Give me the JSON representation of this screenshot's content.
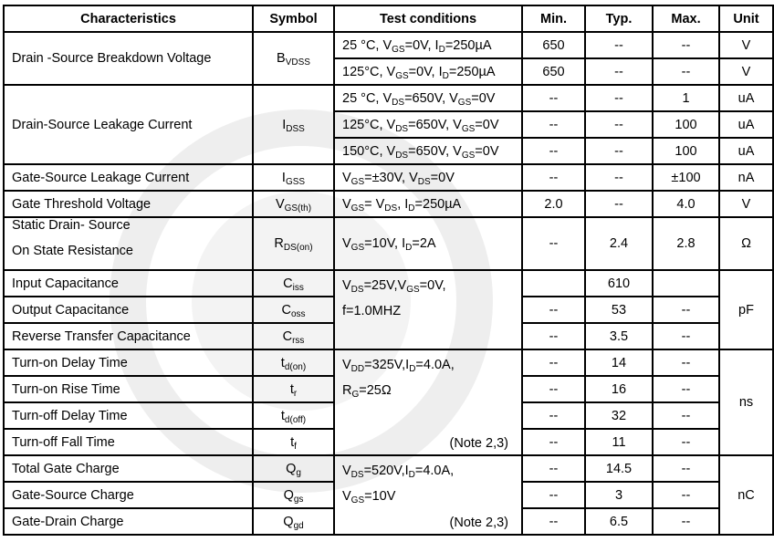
{
  "header": [
    "Characteristics",
    "Symbol",
    "Test conditions",
    "Min.",
    "Typ.",
    "Max.",
    "Unit"
  ],
  "groups": [
    {
      "type": "multi",
      "name": [
        "Drain -Source Breakdown Voltage"
      ],
      "symbol": [
        "B",
        "VDSS"
      ],
      "conditions": [
        {
          "cond": [
            "25 °C, V",
            "GS",
            "=0V, I",
            "D",
            "=250µA"
          ],
          "min": "650",
          "typ": "--",
          "max": "--",
          "unit": "V"
        },
        {
          "cond": [
            "125°C, V",
            "GS",
            "=0V, I",
            "D",
            "=250µA"
          ],
          "min": "650",
          "typ": "--",
          "max": "--",
          "unit": "V"
        }
      ]
    },
    {
      "type": "multi",
      "name": [
        "Drain-Source Leakage Current"
      ],
      "symbol": [
        "I",
        "DSS"
      ],
      "conditions": [
        {
          "cond": [
            "25 °C, V",
            "DS",
            "=650V, V",
            "GS",
            "=0V"
          ],
          "min": "--",
          "typ": "--",
          "max": "1",
          "unit": "uA"
        },
        {
          "cond": [
            "125°C, V",
            "DS",
            "=650V, V",
            "GS",
            "=0V"
          ],
          "min": "--",
          "typ": "--",
          "max": "100",
          "unit": "uA"
        },
        {
          "cond": [
            "150°C, V",
            "DS",
            "=650V, V",
            "GS",
            "=0V"
          ],
          "min": "--",
          "typ": "--",
          "max": "100",
          "unit": "uA"
        }
      ]
    },
    {
      "type": "multi",
      "name": [
        "Gate-Source Leakage Current"
      ],
      "symbol": [
        "I",
        "GSS"
      ],
      "conditions": [
        {
          "cond": [
            "V",
            "GS",
            "=±30V, V",
            "DS",
            "=0V"
          ],
          "min": "--",
          "typ": "--",
          "max": "±100",
          "unit": "nA"
        }
      ]
    },
    {
      "type": "multi",
      "name": [
        "Gate Threshold Voltage"
      ],
      "symbol": [
        "V",
        "GS(th)"
      ],
      "conditions": [
        {
          "cond": [
            "V",
            "GS",
            "= V",
            "DS",
            ", I",
            "D",
            "=250µA"
          ],
          "min": "2.0",
          "typ": "--",
          "max": "4.0",
          "unit": "V"
        }
      ]
    },
    {
      "type": "multi",
      "name": [
        "Static Drain- Source",
        "On State Resistance"
      ],
      "symbol": [
        "R",
        "DS(on)"
      ],
      "conditions": [
        {
          "cond": [
            "V",
            "GS",
            "=10V, I",
            "D",
            "=2A"
          ],
          "min": "--",
          "typ": "2.4",
          "max": "2.8",
          "unit": "Ω"
        }
      ]
    },
    {
      "type": "shared",
      "cond_lines": [
        [
          "V",
          "DS",
          "=25V,V",
          "GS",
          "=0V,"
        ],
        [
          "f=1.0MHZ"
        ]
      ],
      "note": "",
      "unit": "pF",
      "params": [
        {
          "name": "Input Capacitance",
          "symbol": [
            "C",
            "iss"
          ],
          "min": "",
          "typ": "610",
          "max": ""
        },
        {
          "name": "Output Capacitance",
          "symbol": [
            "C",
            "oss"
          ],
          "min": "--",
          "typ": "53",
          "max": "--"
        },
        {
          "name": "Reverse Transfer Capacitance",
          "symbol": [
            "C",
            "rss"
          ],
          "min": "--",
          "typ": "3.5",
          "max": "--"
        }
      ]
    },
    {
      "type": "shared",
      "cond_lines": [
        [
          "V",
          "DD",
          "=325V,I",
          "D",
          "=4.0A,"
        ],
        [
          "R",
          "G",
          "=25Ω"
        ]
      ],
      "note": "(Note 2,3)",
      "unit": "ns",
      "params": [
        {
          "name": "Turn-on Delay Time",
          "symbol": [
            "t",
            "d(on)"
          ],
          "min": "--",
          "typ": "14",
          "max": "--"
        },
        {
          "name": "Turn-on Rise Time",
          "symbol": [
            "t",
            "r"
          ],
          "min": "--",
          "typ": "16",
          "max": "--"
        },
        {
          "name": "Turn-off Delay Time",
          "symbol": [
            "t",
            "d(off)"
          ],
          "min": "--",
          "typ": "32",
          "max": "--"
        },
        {
          "name": "Turn-off Fall Time",
          "symbol": [
            "t",
            "f"
          ],
          "min": "--",
          "typ": "11",
          "max": "--"
        }
      ]
    },
    {
      "type": "shared",
      "cond_lines": [
        [
          "V",
          "DS",
          "=520V,I",
          "D",
          "=4.0A,"
        ],
        [
          "V",
          "GS",
          "=10V"
        ]
      ],
      "note": "(Note 2,3)",
      "unit": "nC",
      "params": [
        {
          "name": "Total Gate Charge",
          "symbol": [
            "Q",
            "g"
          ],
          "min": "--",
          "typ": "14.5",
          "max": "--"
        },
        {
          "name": "Gate-Source Charge",
          "symbol": [
            "Q",
            "gs"
          ],
          "min": "--",
          "typ": "3",
          "max": "--"
        },
        {
          "name": "Gate-Drain Charge",
          "symbol": [
            "Q",
            "gd"
          ],
          "min": "--",
          "typ": "6.5",
          "max": "--"
        }
      ]
    }
  ]
}
